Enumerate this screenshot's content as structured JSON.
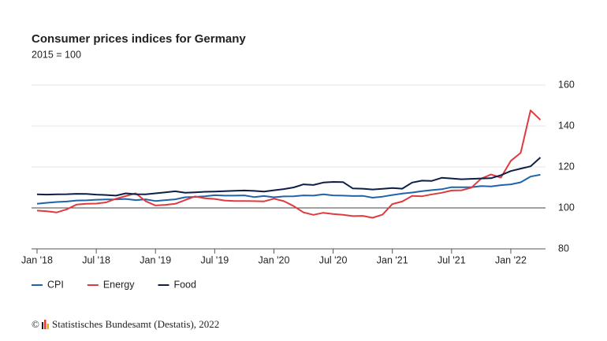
{
  "chart_data": {
    "type": "line",
    "title": "Consumer prices indices for Germany",
    "subtitle": "2015 = 100",
    "categories": [
      "Jan '18",
      null,
      null,
      null,
      null,
      null,
      "Jul '18",
      null,
      null,
      null,
      null,
      null,
      "Jan '19",
      null,
      null,
      null,
      null,
      null,
      "Jul '19",
      null,
      null,
      null,
      null,
      null,
      "Jan '20",
      null,
      null,
      null,
      null,
      null,
      "Jul '20",
      null,
      null,
      null,
      null,
      null,
      "Jan '21",
      null,
      null,
      null,
      null,
      null,
      "Jul '21",
      null,
      null,
      null,
      null,
      null,
      "Jan '22",
      null,
      null,
      null
    ],
    "series": [
      {
        "name": "CPI",
        "color": "#1f64a8",
        "values": [
          102.0,
          102.5,
          102.9,
          103.1,
          103.6,
          103.7,
          104.0,
          104.1,
          104.2,
          104.4,
          103.8,
          104.2,
          103.4,
          103.8,
          104.2,
          105.2,
          105.4,
          105.7,
          106.2,
          106.0,
          106.0,
          106.1,
          105.3,
          105.8,
          105.2,
          105.6,
          105.7,
          106.1,
          106.0,
          106.6,
          106.1,
          106.0,
          105.8,
          105.9,
          105.0,
          105.5,
          106.3,
          107.0,
          107.5,
          108.2,
          108.7,
          109.1,
          110.1,
          110.1,
          110.1,
          110.7,
          110.5,
          111.1,
          111.5,
          112.5,
          115.3,
          116.2
        ]
      },
      {
        "name": "Energy",
        "color": "#e0393e",
        "values": [
          98.7,
          98.4,
          97.8,
          99.3,
          101.6,
          102.0,
          102.1,
          102.7,
          104.5,
          105.8,
          107.1,
          103.3,
          101.2,
          101.5,
          102.0,
          103.8,
          105.6,
          104.7,
          104.4,
          103.6,
          103.4,
          103.4,
          103.3,
          103.2,
          104.5,
          103.3,
          100.9,
          97.8,
          96.6,
          97.6,
          97.0,
          96.6,
          96.0,
          96.1,
          95.2,
          96.7,
          101.9,
          103.1,
          105.9,
          105.7,
          106.6,
          107.4,
          108.5,
          108.6,
          109.9,
          114.3,
          116.3,
          114.8,
          123.0,
          126.9,
          147.6,
          143.0
        ]
      },
      {
        "name": "Food",
        "color": "#0d1f45",
        "values": [
          106.6,
          106.5,
          106.6,
          106.7,
          106.9,
          106.8,
          106.5,
          106.3,
          106.0,
          107.1,
          106.7,
          106.6,
          107.1,
          107.6,
          108.1,
          107.4,
          107.6,
          107.9,
          108.0,
          108.2,
          108.4,
          108.5,
          108.3,
          108.0,
          108.6,
          109.2,
          110.0,
          111.5,
          111.2,
          112.4,
          112.7,
          112.6,
          109.5,
          109.4,
          109.0,
          109.3,
          109.7,
          109.4,
          112.4,
          113.3,
          113.2,
          114.7,
          114.4,
          114.0,
          114.2,
          114.4,
          114.5,
          116.0,
          118.0,
          119.2,
          120.3,
          124.6
        ]
      }
    ],
    "ylim": [
      80,
      160
    ],
    "yticks": [
      80,
      100,
      120,
      140,
      160
    ],
    "grid": true,
    "reference_line": 100,
    "legend": "bottom-left",
    "copyright": "©",
    "source": "Statistisches Bundesamt (Destatis), 2022"
  }
}
